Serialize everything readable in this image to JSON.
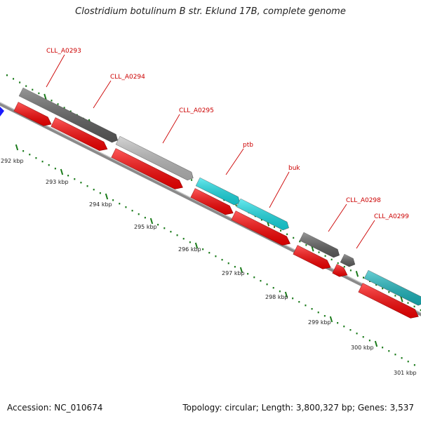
{
  "title": "Clostridium botulinum B str. Eklund 17B, complete genome",
  "footer": {
    "accession": "Accession: NC_010674",
    "summary": "Topology: circular; Length: 3,800,327 bp; Genes: 3,537"
  },
  "colors": {
    "axis": "#8a8a8a",
    "tick": "#1a7a1a",
    "cds": "#ff0000",
    "gene_dark": "#5f5f5f",
    "gene_light": "#bdbdbd",
    "gene_cyan": "#17e0e8",
    "gene_teal": "#1ab8c0",
    "label": "#cc0000",
    "origin_marker": "#1a1aff"
  },
  "scale_labels": [
    "292 kbp",
    "293 kbp",
    "294 kbp",
    "295 kbp",
    "296 kbp",
    "297 kbp",
    "298 kbp",
    "299 kbp",
    "300 kbp",
    "301 kbp"
  ],
  "genes": [
    {
      "label": "CLL_A0293",
      "color": "gene_dark"
    },
    {
      "label": "CLL_A0294",
      "color": "gene_dark"
    },
    {
      "label": "CLL_A0295",
      "color": "gene_light"
    },
    {
      "label": "ptb",
      "color": "gene_cyan"
    },
    {
      "label": "buk",
      "color": "gene_cyan"
    },
    {
      "label": "CLL_A0298",
      "color": "gene_dark"
    },
    {
      "label": "CLL_A0299",
      "color": "gene_dark"
    },
    {
      "label": "",
      "color": "gene_teal"
    }
  ]
}
